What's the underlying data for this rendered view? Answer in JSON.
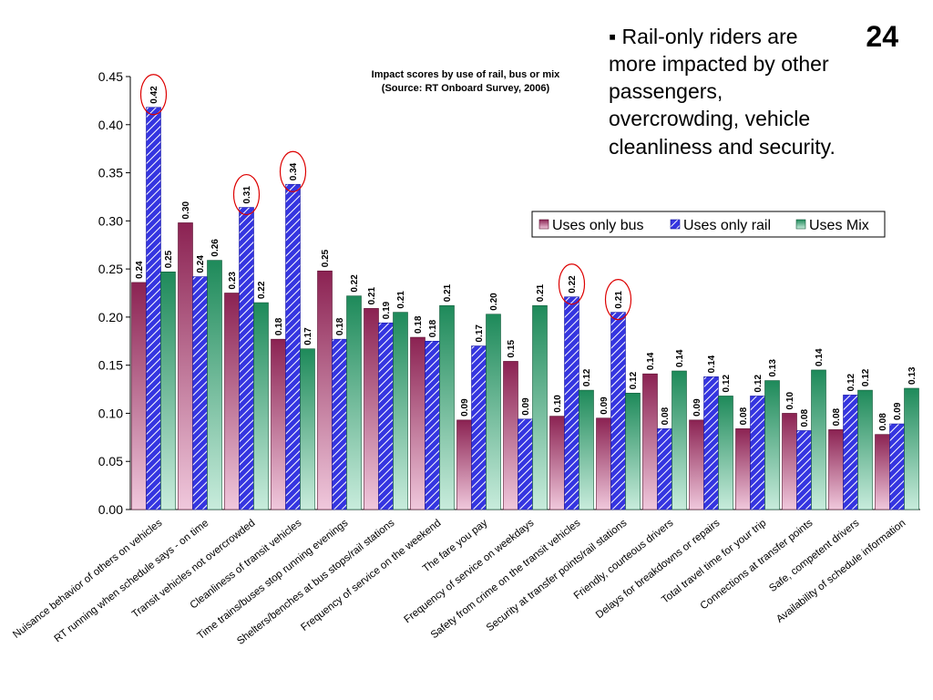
{
  "slide": {
    "number": "24",
    "bullet_marker": "▪",
    "bullet_text": "Rail-only riders are more impacted by other passengers, overcrowding, vehicle cleanliness and security."
  },
  "chart_data": {
    "type": "bar",
    "title": "Impact scores by use of rail, bus or mix",
    "subtitle": "(Source: RT Onboard Survey, 2006)",
    "ylim": [
      0,
      0.45
    ],
    "yticks": [
      "0.00",
      "0.05",
      "0.10",
      "0.15",
      "0.20",
      "0.25",
      "0.30",
      "0.35",
      "0.40",
      "0.45"
    ],
    "legend_position": "right",
    "grid": false,
    "categories": [
      "Nuisance behavior of others on vehicles",
      "RT running when schedule says - on time",
      "Transit vehicles not overcrowded",
      "Cleanliness of transit vehicles",
      "Time trains/buses stop running evenings",
      "Shelters/benches at bus stops/rail stations",
      "Frequency of service on the weekend",
      "The fare you pay",
      "Frequency of service on weekdays",
      "Safety from crime on the transit vehicles",
      "Security at transfer points/rail stations",
      "Friendly, courteous drivers",
      "Delays for breakdowns or repairs",
      "Total travel time for your trip",
      "Connections at transfer points",
      "Safe, competent drivers",
      "Availability of schedule information"
    ],
    "series": [
      {
        "name": "Uses only bus",
        "color": "#8b2252",
        "values": [
          0.236,
          0.298,
          0.225,
          0.177,
          0.248,
          0.209,
          0.179,
          0.093,
          0.154,
          0.097,
          0.095,
          0.141,
          0.093,
          0.084,
          0.1,
          0.083,
          0.078
        ],
        "labels": [
          "0.24",
          "0.30",
          "0.23",
          "0.18",
          "0.25",
          "0.21",
          "0.18",
          "0.09",
          "0.15",
          "0.10",
          "0.09",
          "0.14",
          "0.09",
          "0.08",
          "0.10",
          "0.08",
          "0.08"
        ]
      },
      {
        "name": "Uses only rail",
        "color": "#3535e0",
        "values": [
          0.418,
          0.242,
          0.314,
          0.338,
          0.177,
          0.194,
          0.175,
          0.17,
          0.094,
          0.221,
          0.205,
          0.084,
          0.138,
          0.118,
          0.082,
          0.119,
          0.089
        ],
        "labels": [
          "0.42",
          "0.24",
          "0.31",
          "0.34",
          "0.18",
          "0.19",
          "0.18",
          "0.17",
          "0.09",
          "0.22",
          "0.21",
          "0.08",
          "0.14",
          "0.12",
          "0.08",
          "0.12",
          "0.09"
        ]
      },
      {
        "name": "Uses Mix",
        "color": "#1e8a5a",
        "values": [
          0.247,
          0.259,
          0.215,
          0.167,
          0.222,
          0.205,
          0.212,
          0.203,
          0.212,
          0.124,
          0.121,
          0.144,
          0.118,
          0.134,
          0.145,
          0.124,
          0.126
        ],
        "labels": [
          "0.25",
          "0.26",
          "0.22",
          "0.17",
          "0.22",
          "0.21",
          "0.21",
          "0.20",
          "0.21",
          "0.12",
          "0.12",
          "0.14",
          "0.12",
          "0.13",
          "0.14",
          "0.12",
          "0.13"
        ]
      }
    ],
    "highlighted": [
      "0.42",
      "0.31",
      "0.34",
      "0.22",
      "0.21"
    ]
  }
}
